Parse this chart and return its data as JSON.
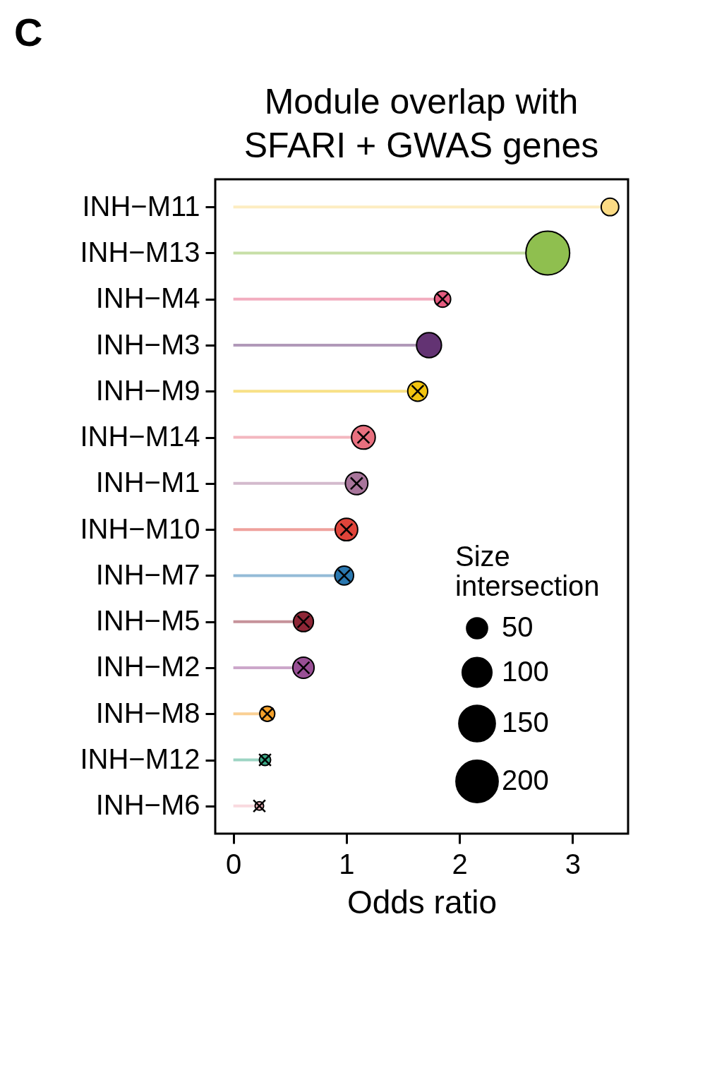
{
  "chart_data": {
    "type": "lollipop",
    "title": "Module overlap with\nSFARI + GWAS genes",
    "xlabel": "Odds ratio",
    "legend_title": "Size\nintersection",
    "annotations": [
      "C"
    ],
    "categories": [
      "INH−M11",
      "INH−M13",
      "INH−M4",
      "INH−M3",
      "INH−M9",
      "INH−M14",
      "INH−M1",
      "INH−M10",
      "INH−M7",
      "INH−M5",
      "INH−M2",
      "INH−M8",
      "INH−M12",
      "INH−M6"
    ],
    "orientation": "horizontal",
    "xlim": [
      -0.16,
      3.49
    ],
    "xticks": [
      0,
      1,
      2,
      3
    ],
    "grid": false,
    "size_legend": [
      50,
      100,
      150,
      200
    ],
    "series": [
      {
        "type": "lollipop",
        "marker": "circle",
        "values": [
          3.33,
          2.78,
          1.85,
          1.73,
          1.63,
          1.15,
          1.09,
          1.0,
          0.98,
          0.62,
          0.62,
          0.3,
          0.28,
          0.23
        ],
        "sizes": [
          34,
          212,
          29,
          69,
          44,
          62,
          56,
          56,
          39,
          44,
          50,
          25,
          14,
          8
        ],
        "colors": [
          "#fbdb84",
          "#8fbf4f",
          "#e55b7f",
          "#633373",
          "#f2c40f",
          "#e8707f",
          "#a8759b",
          "#e0443a",
          "#2a78b0",
          "#8e2636",
          "#994f95",
          "#f5a12a",
          "#3aa987",
          "#f4b6c0"
        ]
      },
      {
        "type": "scatter",
        "marker": "cross",
        "color": "#000000",
        "values": [
          null,
          null,
          1.85,
          null,
          1.63,
          1.15,
          1.09,
          1.0,
          0.98,
          0.62,
          0.62,
          0.3,
          0.28,
          0.23
        ]
      }
    ]
  }
}
